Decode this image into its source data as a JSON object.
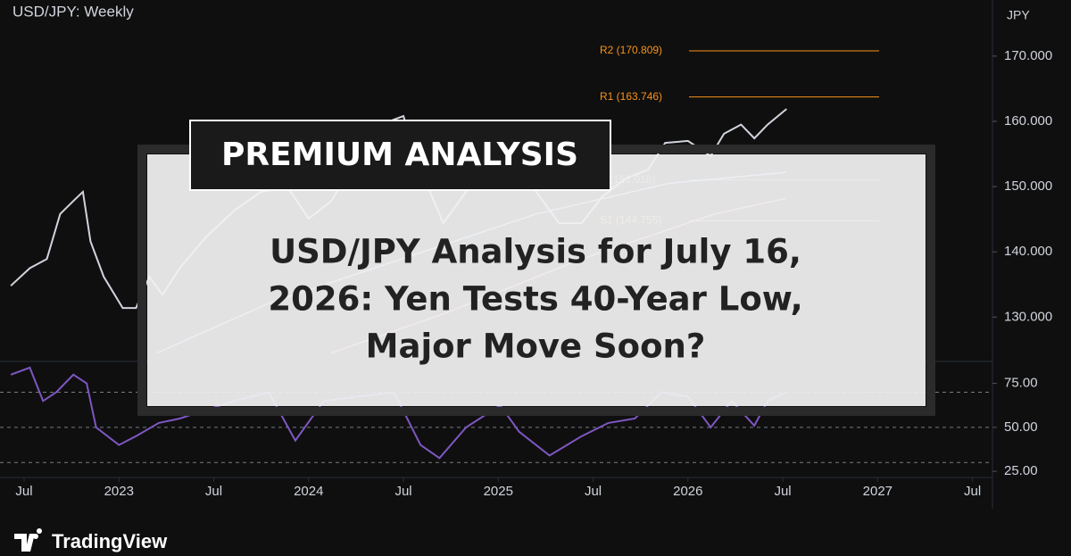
{
  "header": {
    "symbol": "USD/JPY: Weekly",
    "currency": "JPY"
  },
  "chart_data": [
    {
      "type": "line",
      "xlim": [
        2022.373,
        2027.596
      ],
      "xticks": [
        {
          "value": 2022.5,
          "label": "Jul"
        },
        2023,
        {
          "value": 2023.5,
          "label": "Jul"
        },
        2024,
        {
          "value": 2024.5,
          "label": "Jul"
        },
        2025,
        {
          "value": 2025.5,
          "label": "Jul"
        },
        2026,
        {
          "value": 2026.5,
          "label": "Jul"
        },
        2027,
        {
          "value": 2027.5,
          "label": "Jul"
        }
      ],
      "ylim": [
        123.2,
        178.6
      ],
      "yticks": [
        {
          "value": 130,
          "label": "130.000"
        },
        {
          "value": 140,
          "label": "140.000"
        },
        {
          "value": 150,
          "label": "150.000"
        },
        {
          "value": 160,
          "label": "160.000"
        },
        {
          "value": 170,
          "label": "170.000"
        }
      ],
      "series": [
        {
          "color": "#d1d4dc",
          "x": [
            2022.43,
            2022.53,
            2022.62,
            2022.69,
            2022.76,
            2022.81,
            2022.85,
            2022.92,
            2023.02,
            2023.09,
            2023.16,
            2023.23,
            2023.32,
            2023.46,
            2023.61,
            2023.75,
            2023.89,
            2024.0,
            2024.12,
            2024.26,
            2024.38,
            2024.5,
            2024.59,
            2024.71,
            2024.83,
            2024.97,
            2025.08,
            2025.2,
            2025.32,
            2025.44,
            2025.55,
            2025.67,
            2025.79,
            2025.88,
            2026.0,
            2026.12,
            2026.19,
            2026.28,
            2026.35,
            2026.42,
            2026.52
          ],
          "values": [
            134.8,
            137.5,
            138.9,
            145.8,
            147.8,
            149.2,
            141.6,
            136.2,
            131.4,
            131.4,
            136.2,
            133.4,
            137.5,
            142.3,
            146.4,
            149.2,
            149.9,
            145.1,
            147.8,
            154.7,
            159.5,
            160.8,
            152.6,
            144.4,
            149.2,
            154.7,
            153.3,
            149.2,
            144.4,
            144.4,
            148.5,
            151.2,
            152.6,
            156.7,
            157.0,
            154.7,
            158.1,
            159.5,
            157.4,
            159.5,
            161.9
          ]
        },
        {
          "color": "#9ec9ff",
          "x": [
            2023.2,
            2023.79,
            2024.49,
            2025.2,
            2025.9,
            2026.52
          ],
          "values": [
            124.5,
            132.1,
            138.9,
            145.8,
            150.5,
            152.2
          ]
        },
        {
          "color": "#f48fb1",
          "x": [
            2024.12,
            2024.73,
            2025.44,
            2026.14,
            2026.52
          ],
          "values": [
            124.5,
            130.7,
            138.9,
            145.8,
            148.2
          ]
        }
      ],
      "levels": [
        {
          "label": "R2 (170.809)",
          "value": 170.809,
          "color": "#f7931a"
        },
        {
          "label": "R1 (163.746)",
          "value": 163.746,
          "color": "#f7931a"
        },
        {
          "label": "P (151.018)",
          "value": 151.018,
          "color": "#9aa0aa"
        },
        {
          "label": "S1 (144.755)",
          "value": 144.755,
          "color": "#d4b26a"
        }
      ]
    },
    {
      "type": "line",
      "ylim": [
        21.5,
        87.5
      ],
      "yticks": [
        {
          "value": 25,
          "label": "25.00"
        },
        {
          "value": 50,
          "label": "50.00"
        },
        {
          "value": 75,
          "label": "75.00"
        }
      ],
      "levels": [
        70,
        50,
        30
      ],
      "series": [
        {
          "color": "#7e57c2",
          "x": [
            2022.43,
            2022.53,
            2022.6,
            2022.67,
            2022.76,
            2022.83,
            2022.88,
            2023.0,
            2023.09,
            2023.21,
            2023.32,
            2023.46,
            2023.61,
            2023.79,
            2023.93,
            2024.08,
            2024.26,
            2024.45,
            2024.59,
            2024.69,
            2024.83,
            2025.01,
            2025.11,
            2025.27,
            2025.44,
            2025.58,
            2025.72,
            2025.86,
            2026.0,
            2026.12,
            2026.23,
            2026.35,
            2026.42,
            2026.52
          ],
          "values": [
            80,
            84,
            65,
            70,
            80,
            75,
            50,
            40,
            45,
            52.5,
            55,
            60,
            65,
            70,
            42.5,
            65,
            67.5,
            70,
            40,
            32.5,
            50,
            62.5,
            47.5,
            34,
            45,
            52.5,
            55,
            70,
            67.5,
            50,
            65,
            51,
            65,
            70
          ]
        }
      ]
    }
  ],
  "overlay": {
    "badge": "PREMIUM ANALYSIS",
    "headline": [
      "USD/JPY Analysis for July 16,",
      "2026: Yen Tests 40-Year Low,",
      "Major Move Soon?"
    ]
  },
  "brand": "TradingView"
}
